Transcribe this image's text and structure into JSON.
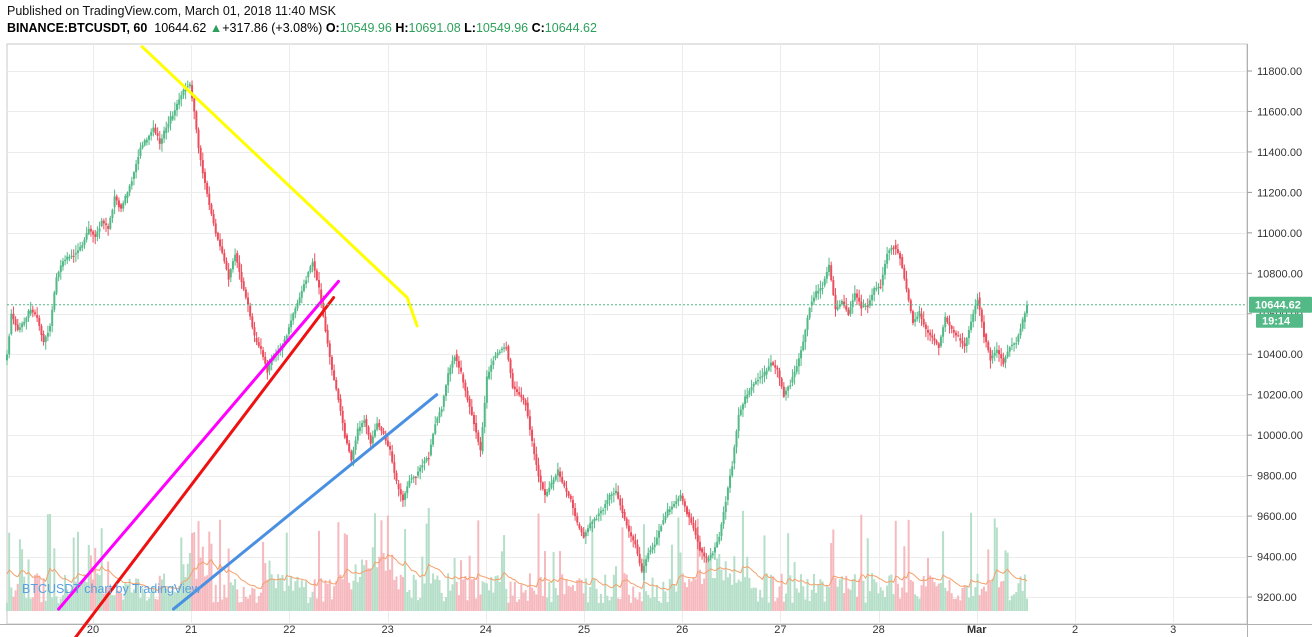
{
  "header": {
    "published": "Published on TradingView.com, March 01, 2018 11:40 MSK",
    "symbol": "BINANCE:BTCUSDT, 60",
    "last": "10644.62",
    "change_arrow": "▲",
    "change": "+317.86 (+3.08%)",
    "o_label": "O:",
    "o_value": "10549.96",
    "h_label": "H:",
    "h_value": "10691.08",
    "l_label": "L:",
    "l_value": "10549.96",
    "c_label": "C:",
    "c_value": "10644.62"
  },
  "watermark": "BTCUSDT chart by TradingView",
  "price_badge": {
    "price": "10644.62",
    "countdown": "19:14"
  },
  "colors": {
    "up": "#53b987",
    "down": "#eb4d5c",
    "vol_up": "#b6dfc9",
    "vol_down": "#f5b9be",
    "yellow": "#ffff00",
    "magenta": "#ff00ff",
    "red": "#ee1111",
    "blue": "#4a90e2",
    "ma": "#f4a06b",
    "badge": "#53b987",
    "grid": "#ececec"
  },
  "chart_data": {
    "type": "candlestick",
    "y_ticks": [
      9200,
      9400,
      9600,
      9800,
      10000,
      10200,
      10400,
      10600,
      10800,
      11000,
      11200,
      11400,
      11600,
      11800
    ],
    "y_tick_labels": [
      "9200.00",
      "9400.00",
      "9600.00",
      "9800.00",
      "10000.00",
      "10200.00",
      "10400.00",
      "10600.00",
      "10800.00",
      "11000.00",
      "11200.00",
      "11400.00",
      "11600.00",
      "11800.00"
    ],
    "ylim": [
      9100,
      11980
    ],
    "x_day_labels": [
      "20",
      "21",
      "22",
      "23",
      "24",
      "25",
      "26",
      "27",
      "28",
      "Mar",
      "2",
      "3"
    ],
    "last_price": 10644.62,
    "keypoints": [
      [
        0,
        10400
      ],
      [
        2,
        10600
      ],
      [
        5,
        10520
      ],
      [
        8,
        10560
      ],
      [
        11,
        10620
      ],
      [
        14,
        10580
      ],
      [
        17,
        10460
      ],
      [
        20,
        10540
      ],
      [
        23,
        10780
      ],
      [
        26,
        10860
      ],
      [
        29,
        10880
      ],
      [
        32,
        10900
      ],
      [
        35,
        10940
      ],
      [
        38,
        11020
      ],
      [
        41,
        10980
      ],
      [
        44,
        11060
      ],
      [
        47,
        11020
      ],
      [
        50,
        11180
      ],
      [
        53,
        11120
      ],
      [
        56,
        11200
      ],
      [
        59,
        11300
      ],
      [
        62,
        11420
      ],
      [
        65,
        11460
      ],
      [
        68,
        11520
      ],
      [
        71,
        11440
      ],
      [
        74,
        11520
      ],
      [
        77,
        11580
      ],
      [
        80,
        11660
      ],
      [
        83,
        11720
      ],
      [
        85,
        11730
      ],
      [
        87,
        11600
      ],
      [
        89,
        11420
      ],
      [
        91,
        11300
      ],
      [
        94,
        11140
      ],
      [
        97,
        11000
      ],
      [
        100,
        10900
      ],
      [
        103,
        10780
      ],
      [
        106,
        10900
      ],
      [
        109,
        10760
      ],
      [
        112,
        10640
      ],
      [
        115,
        10480
      ],
      [
        118,
        10420
      ],
      [
        121,
        10320
      ],
      [
        124,
        10400
      ],
      [
        127,
        10420
      ],
      [
        130,
        10500
      ],
      [
        133,
        10600
      ],
      [
        136,
        10680
      ],
      [
        139,
        10780
      ],
      [
        142,
        10860
      ],
      [
        145,
        10720
      ],
      [
        148,
        10520
      ],
      [
        151,
        10320
      ],
      [
        154,
        10180
      ],
      [
        157,
        10000
      ],
      [
        160,
        9880
      ],
      [
        163,
        10020
      ],
      [
        166,
        10080
      ],
      [
        169,
        9960
      ],
      [
        172,
        10060
      ],
      [
        175,
        10000
      ],
      [
        178,
        9920
      ],
      [
        181,
        9760
      ],
      [
        184,
        9680
      ],
      [
        187,
        9780
      ],
      [
        190,
        9800
      ],
      [
        193,
        9860
      ],
      [
        196,
        9900
      ],
      [
        199,
        10060
      ],
      [
        202,
        10140
      ],
      [
        205,
        10300
      ],
      [
        208,
        10400
      ],
      [
        211,
        10300
      ],
      [
        214,
        10180
      ],
      [
        217,
        10060
      ],
      [
        220,
        9920
      ],
      [
        223,
        10280
      ],
      [
        226,
        10380
      ],
      [
        229,
        10420
      ],
      [
        232,
        10440
      ],
      [
        235,
        10240
      ],
      [
        238,
        10200
      ],
      [
        241,
        10160
      ],
      [
        244,
        9960
      ],
      [
        247,
        9800
      ],
      [
        250,
        9700
      ],
      [
        253,
        9760
      ],
      [
        256,
        9820
      ],
      [
        259,
        9740
      ],
      [
        262,
        9680
      ],
      [
        265,
        9560
      ],
      [
        268,
        9500
      ],
      [
        271,
        9560
      ],
      [
        274,
        9600
      ],
      [
        277,
        9640
      ],
      [
        280,
        9700
      ],
      [
        283,
        9720
      ],
      [
        286,
        9620
      ],
      [
        289,
        9520
      ],
      [
        292,
        9460
      ],
      [
        295,
        9320
      ],
      [
        298,
        9420
      ],
      [
        301,
        9460
      ],
      [
        304,
        9560
      ],
      [
        307,
        9620
      ],
      [
        310,
        9660
      ],
      [
        313,
        9700
      ],
      [
        316,
        9620
      ],
      [
        319,
        9540
      ],
      [
        322,
        9440
      ],
      [
        325,
        9380
      ],
      [
        328,
        9420
      ],
      [
        331,
        9500
      ],
      [
        334,
        9680
      ],
      [
        337,
        9860
      ],
      [
        340,
        10100
      ],
      [
        343,
        10180
      ],
      [
        346,
        10240
      ],
      [
        349,
        10280
      ],
      [
        352,
        10300
      ],
      [
        355,
        10360
      ],
      [
        358,
        10320
      ],
      [
        361,
        10200
      ],
      [
        364,
        10260
      ],
      [
        367,
        10340
      ],
      [
        370,
        10460
      ],
      [
        373,
        10640
      ],
      [
        376,
        10700
      ],
      [
        379,
        10740
      ],
      [
        382,
        10840
      ],
      [
        385,
        10620
      ],
      [
        388,
        10660
      ],
      [
        391,
        10600
      ],
      [
        394,
        10700
      ],
      [
        397,
        10640
      ],
      [
        400,
        10640
      ],
      [
        403,
        10720
      ],
      [
        406,
        10740
      ],
      [
        409,
        10900
      ],
      [
        412,
        10940
      ],
      [
        415,
        10880
      ],
      [
        418,
        10720
      ],
      [
        421,
        10560
      ],
      [
        424,
        10600
      ],
      [
        427,
        10520
      ],
      [
        430,
        10480
      ],
      [
        433,
        10440
      ],
      [
        436,
        10580
      ],
      [
        439,
        10520
      ],
      [
        442,
        10480
      ],
      [
        445,
        10440
      ],
      [
        448,
        10560
      ],
      [
        451,
        10680
      ],
      [
        454,
        10500
      ],
      [
        457,
        10380
      ],
      [
        460,
        10420
      ],
      [
        463,
        10360
      ],
      [
        466,
        10440
      ],
      [
        469,
        10460
      ],
      [
        472,
        10560
      ],
      [
        474,
        10644.62
      ]
    ],
    "trendlines": [
      {
        "name": "",
        "color": "yellow",
        "points": [
          [
            0.5,
            11920
          ],
          [
            3.2,
            10680
          ],
          [
            3.3,
            10540
          ]
        ]
      },
      {
        "name": "",
        "color": "magenta",
        "points": [
          [
            -0.35,
            9140
          ],
          [
            2.5,
            10760
          ]
        ]
      },
      {
        "name": "",
        "color": "red",
        "points": [
          [
            -0.35,
            8890
          ],
          [
            2.45,
            10680
          ]
        ]
      },
      {
        "name": "",
        "color": "blue",
        "points": [
          [
            0.82,
            9140
          ],
          [
            3.5,
            10200
          ]
        ]
      }
    ]
  }
}
